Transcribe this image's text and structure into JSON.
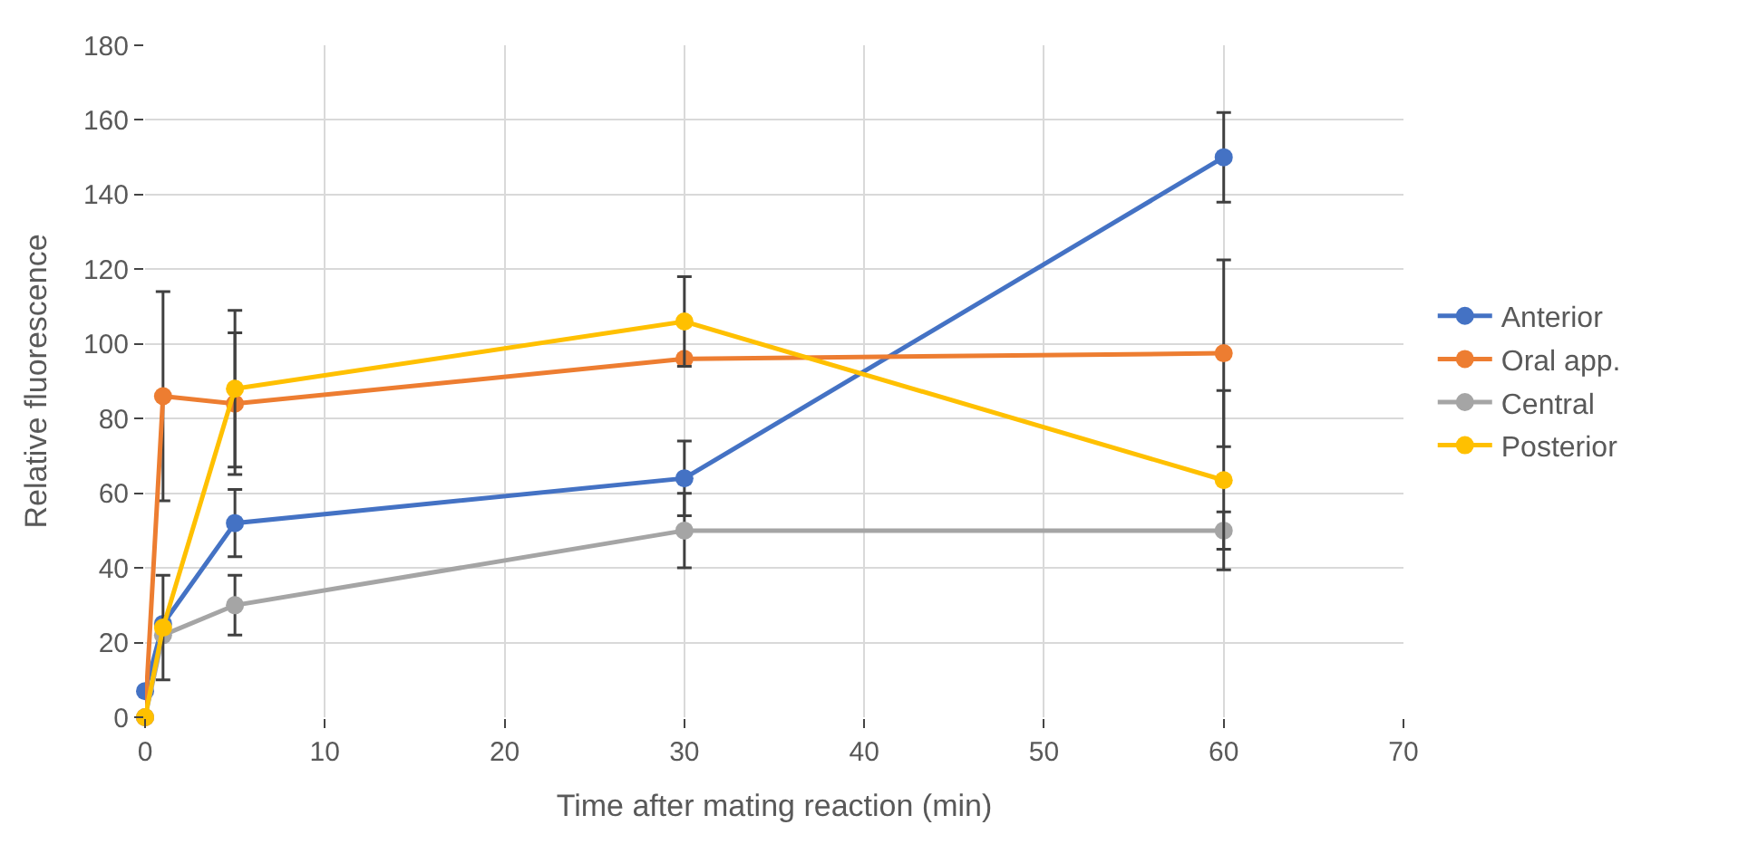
{
  "chart_data": {
    "type": "line",
    "xlabel": "Time after mating reaction (min)",
    "ylabel": "Relative fluorescence",
    "x": [
      0,
      1,
      5,
      30,
      60
    ],
    "series": [
      {
        "name": "Anterior",
        "color": "#4472c4",
        "values": [
          7,
          25,
          52,
          64,
          150
        ],
        "errors": [
          null,
          null,
          9,
          10,
          12
        ]
      },
      {
        "name": "Oral app.",
        "color": "#ed7d31",
        "values": [
          0,
          86,
          84,
          96,
          97.5
        ],
        "errors": [
          null,
          28,
          19,
          null,
          25
        ]
      },
      {
        "name": "Central",
        "color": "#a5a5a5",
        "values": [
          0,
          22,
          30,
          50,
          50
        ],
        "errors": [
          null,
          null,
          8,
          10,
          5
        ]
      },
      {
        "name": "Posterior",
        "color": "#ffc000",
        "values": [
          0,
          24,
          88,
          106,
          63.5
        ],
        "errors": [
          null,
          14,
          21,
          12,
          24
        ]
      }
    ],
    "xlim": [
      0,
      70
    ],
    "xticks": [
      0,
      10,
      20,
      30,
      40,
      50,
      60,
      70
    ],
    "ylim": [
      0,
      180
    ],
    "yticks": [
      0,
      20,
      40,
      60,
      80,
      100,
      120,
      140,
      160,
      180
    ],
    "grid": true,
    "legend": "right",
    "marker": "circle",
    "line_style": "solid"
  }
}
